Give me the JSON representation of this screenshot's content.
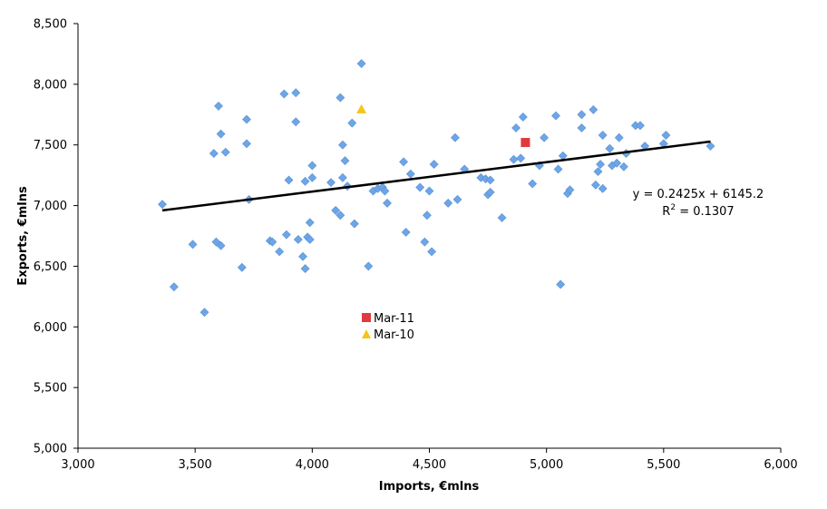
{
  "chart_data": {
    "type": "scatter",
    "title": "",
    "xlabel": "Imports, €mlns",
    "ylabel": "Exports, €mlns",
    "xlim": [
      3000,
      6000
    ],
    "ylim": [
      5000,
      8500
    ],
    "x_ticks": [
      3000,
      3500,
      4000,
      4500,
      5000,
      5500,
      6000
    ],
    "x_tick_labels": [
      "3,000",
      "3,500",
      "4,000",
      "4,500",
      "5,000",
      "5,500",
      "6,000"
    ],
    "y_ticks": [
      5000,
      5500,
      6000,
      6500,
      7000,
      7500,
      8000,
      8500
    ],
    "y_tick_labels": [
      "5,000",
      "5,500",
      "6,000",
      "6,500",
      "7,000",
      "7,500",
      "8,000",
      "8,500"
    ],
    "grid": false,
    "series": [
      {
        "marker": "diamond",
        "color": "#6CA6E8",
        "x": [
          3360,
          3410,
          3490,
          3540,
          3580,
          3590,
          3600,
          3610,
          3610,
          3630,
          3700,
          3720,
          3720,
          3730,
          3820,
          3830,
          3860,
          3880,
          3890,
          3900,
          3930,
          3930,
          3940,
          3960,
          3970,
          3970,
          3980,
          3990,
          3990,
          4000,
          4000,
          4080,
          4100,
          4120,
          4120,
          4130,
          4130,
          4140,
          4150,
          4170,
          4180,
          4210,
          4240,
          4260,
          4280,
          4300,
          4310,
          4320,
          4390,
          4400,
          4420,
          4460,
          4480,
          4490,
          4500,
          4510,
          4520,
          4580,
          4610,
          4620,
          4650,
          4720,
          4740,
          4750,
          4760,
          4760,
          4810,
          4860,
          4870,
          4890,
          4900,
          4940,
          4970,
          4990,
          5040,
          5050,
          5060,
          5070,
          5090,
          5100,
          5150,
          5150,
          5200,
          5210,
          5220,
          5230,
          5240,
          5240,
          5270,
          5280,
          5300,
          5310,
          5330,
          5340,
          5380,
          5400,
          5420,
          5500,
          5510,
          5700
        ],
        "y": [
          7010,
          6330,
          6680,
          6120,
          7430,
          6700,
          7820,
          6670,
          7590,
          7440,
          6490,
          7710,
          7510,
          7050,
          6710,
          6700,
          6620,
          7920,
          6760,
          7210,
          7690,
          7930,
          6720,
          6580,
          7200,
          6480,
          6740,
          6720,
          6860,
          7330,
          7230,
          7190,
          6960,
          7890,
          6920,
          7230,
          7500,
          7370,
          7160,
          7680,
          6850,
          8170,
          6500,
          7120,
          7140,
          7150,
          7120,
          7020,
          7360,
          6780,
          7260,
          7150,
          6700,
          6920,
          7120,
          6620,
          7340,
          7020,
          7560,
          7050,
          7300,
          7230,
          7220,
          7090,
          7110,
          7210,
          6900,
          7380,
          7640,
          7390,
          7730,
          7180,
          7330,
          7560,
          7740,
          7300,
          6350,
          7410,
          7100,
          7130,
          7640,
          7750,
          7790,
          7170,
          7280,
          7340,
          7140,
          7580,
          7470,
          7330,
          7350,
          7560,
          7320,
          7430,
          7660,
          7660,
          7490,
          7510,
          7580,
          7490
        ]
      },
      {
        "name": "Mar-11",
        "marker": "square",
        "color": "#E03A3E",
        "x": [
          4910
        ],
        "y": [
          7520
        ]
      },
      {
        "name": "Mar-10",
        "marker": "triangle",
        "color": "#F5C518",
        "x": [
          4210
        ],
        "y": [
          7790
        ]
      }
    ],
    "trendline": {
      "slope": 0.2425,
      "intercept": 6145.2,
      "x_range": [
        3360,
        5700
      ],
      "equation_label": "y = 0.2425x + 6145.2",
      "r2_prefix": "R",
      "r2_sup": "2",
      "r2_value": " = 0.1307"
    },
    "legend": {
      "placement": "inside-lower-left",
      "items": [
        {
          "label": "Mar-11",
          "marker": "square",
          "color": "#E03A3E"
        },
        {
          "label": "Mar-10",
          "marker": "triangle",
          "color": "#F5C518"
        }
      ]
    }
  }
}
